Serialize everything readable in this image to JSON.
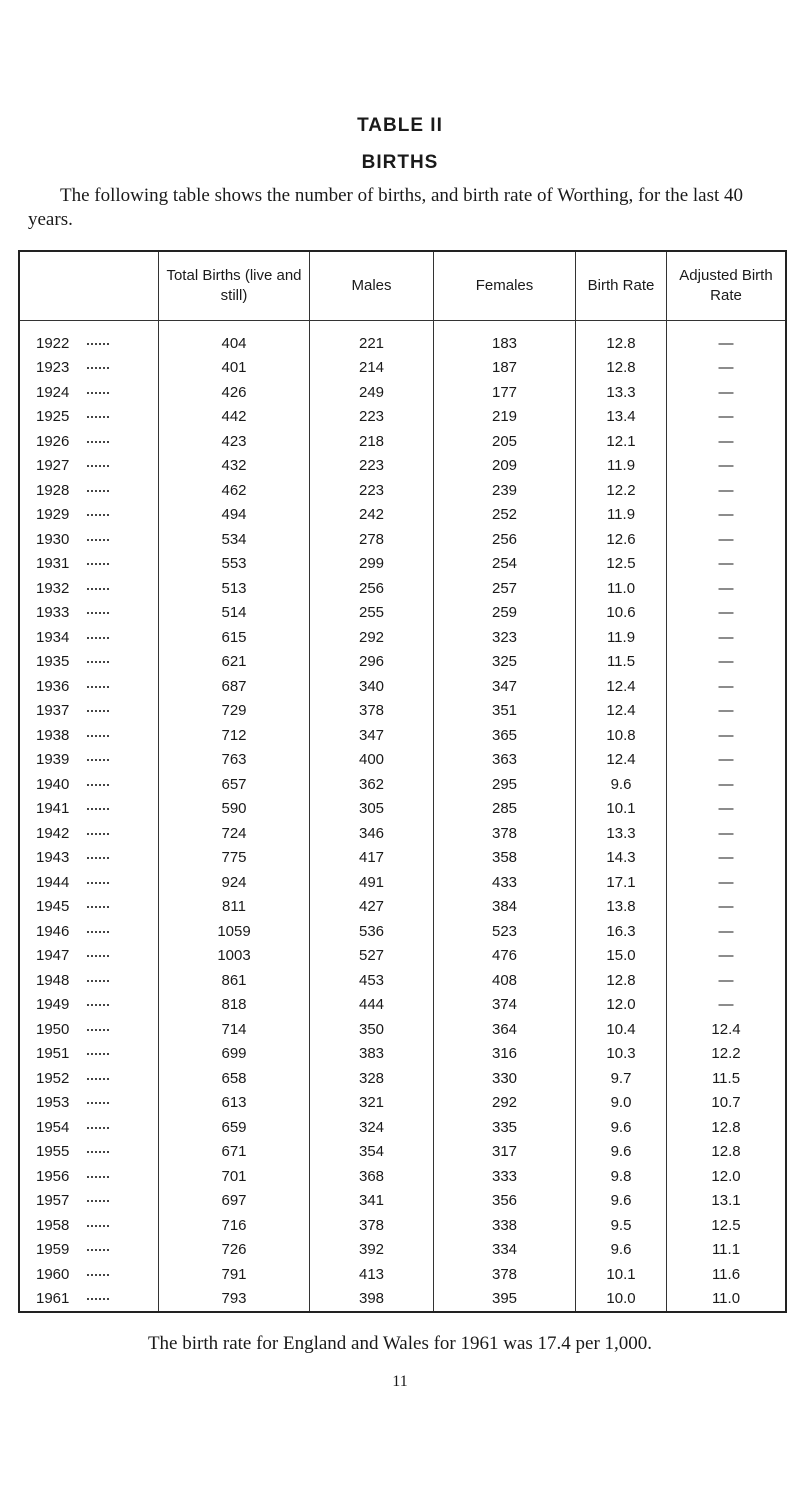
{
  "header": {
    "title": "TABLE II",
    "subtitle": "BIRTHS",
    "intro": "The following table shows the number of births, and birth rate of Worthing, for the last 40 years."
  },
  "table": {
    "columns": [
      "",
      "Total Births (live and still)",
      "Males",
      "Females",
      "Birth Rate",
      "Adjusted Birth Rate"
    ],
    "rows": [
      [
        "1922",
        "404",
        "221",
        "183",
        "12.8",
        "—"
      ],
      [
        "1923",
        "401",
        "214",
        "187",
        "12.8",
        "—"
      ],
      [
        "1924",
        "426",
        "249",
        "177",
        "13.3",
        "—"
      ],
      [
        "1925",
        "442",
        "223",
        "219",
        "13.4",
        "—"
      ],
      [
        "1926",
        "423",
        "218",
        "205",
        "12.1",
        "—"
      ],
      [
        "1927",
        "432",
        "223",
        "209",
        "11.9",
        "—"
      ],
      [
        "1928",
        "462",
        "223",
        "239",
        "12.2",
        "—"
      ],
      [
        "1929",
        "494",
        "242",
        "252",
        "11.9",
        "—"
      ],
      [
        "1930",
        "534",
        "278",
        "256",
        "12.6",
        "—"
      ],
      [
        "1931",
        "553",
        "299",
        "254",
        "12.5",
        "—"
      ],
      [
        "1932",
        "513",
        "256",
        "257",
        "11.0",
        "—"
      ],
      [
        "1933",
        "514",
        "255",
        "259",
        "10.6",
        "—"
      ],
      [
        "1934",
        "615",
        "292",
        "323",
        "11.9",
        "—"
      ],
      [
        "1935",
        "621",
        "296",
        "325",
        "11.5",
        "—"
      ],
      [
        "1936",
        "687",
        "340",
        "347",
        "12.4",
        "—"
      ],
      [
        "1937",
        "729",
        "378",
        "351",
        "12.4",
        "—"
      ],
      [
        "1938",
        "712",
        "347",
        "365",
        "10.8",
        "—"
      ],
      [
        "1939",
        "763",
        "400",
        "363",
        "12.4",
        "—"
      ],
      [
        "1940",
        "657",
        "362",
        "295",
        "9.6",
        "—"
      ],
      [
        "1941",
        "590",
        "305",
        "285",
        "10.1",
        "—"
      ],
      [
        "1942",
        "724",
        "346",
        "378",
        "13.3",
        "—"
      ],
      [
        "1943",
        "775",
        "417",
        "358",
        "14.3",
        "—"
      ],
      [
        "1944",
        "924",
        "491",
        "433",
        "17.1",
        "—"
      ],
      [
        "1945",
        "811",
        "427",
        "384",
        "13.8",
        "—"
      ],
      [
        "1946",
        "1059",
        "536",
        "523",
        "16.3",
        "—"
      ],
      [
        "1947",
        "1003",
        "527",
        "476",
        "15.0",
        "—"
      ],
      [
        "1948",
        "861",
        "453",
        "408",
        "12.8",
        "—"
      ],
      [
        "1949",
        "818",
        "444",
        "374",
        "12.0",
        "—"
      ],
      [
        "1950",
        "714",
        "350",
        "364",
        "10.4",
        "12.4"
      ],
      [
        "1951",
        "699",
        "383",
        "316",
        "10.3",
        "12.2"
      ],
      [
        "1952",
        "658",
        "328",
        "330",
        "9.7",
        "11.5"
      ],
      [
        "1953",
        "613",
        "321",
        "292",
        "9.0",
        "10.7"
      ],
      [
        "1954",
        "659",
        "324",
        "335",
        "9.6",
        "12.8"
      ],
      [
        "1955",
        "671",
        "354",
        "317",
        "9.6",
        "12.8"
      ],
      [
        "1956",
        "701",
        "368",
        "333",
        "9.8",
        "12.0"
      ],
      [
        "1957",
        "697",
        "341",
        "356",
        "9.6",
        "13.1"
      ],
      [
        "1958",
        "716",
        "378",
        "338",
        "9.5",
        "12.5"
      ],
      [
        "1959",
        "726",
        "392",
        "334",
        "9.6",
        "11.1"
      ],
      [
        "1960",
        "791",
        "413",
        "378",
        "10.1",
        "11.6"
      ],
      [
        "1961",
        "793",
        "398",
        "395",
        "10.0",
        "11.0"
      ]
    ]
  },
  "footer": {
    "note": "The birth rate for England and Wales for 1961 was 17.4 per 1,000.",
    "page_number": "11"
  }
}
